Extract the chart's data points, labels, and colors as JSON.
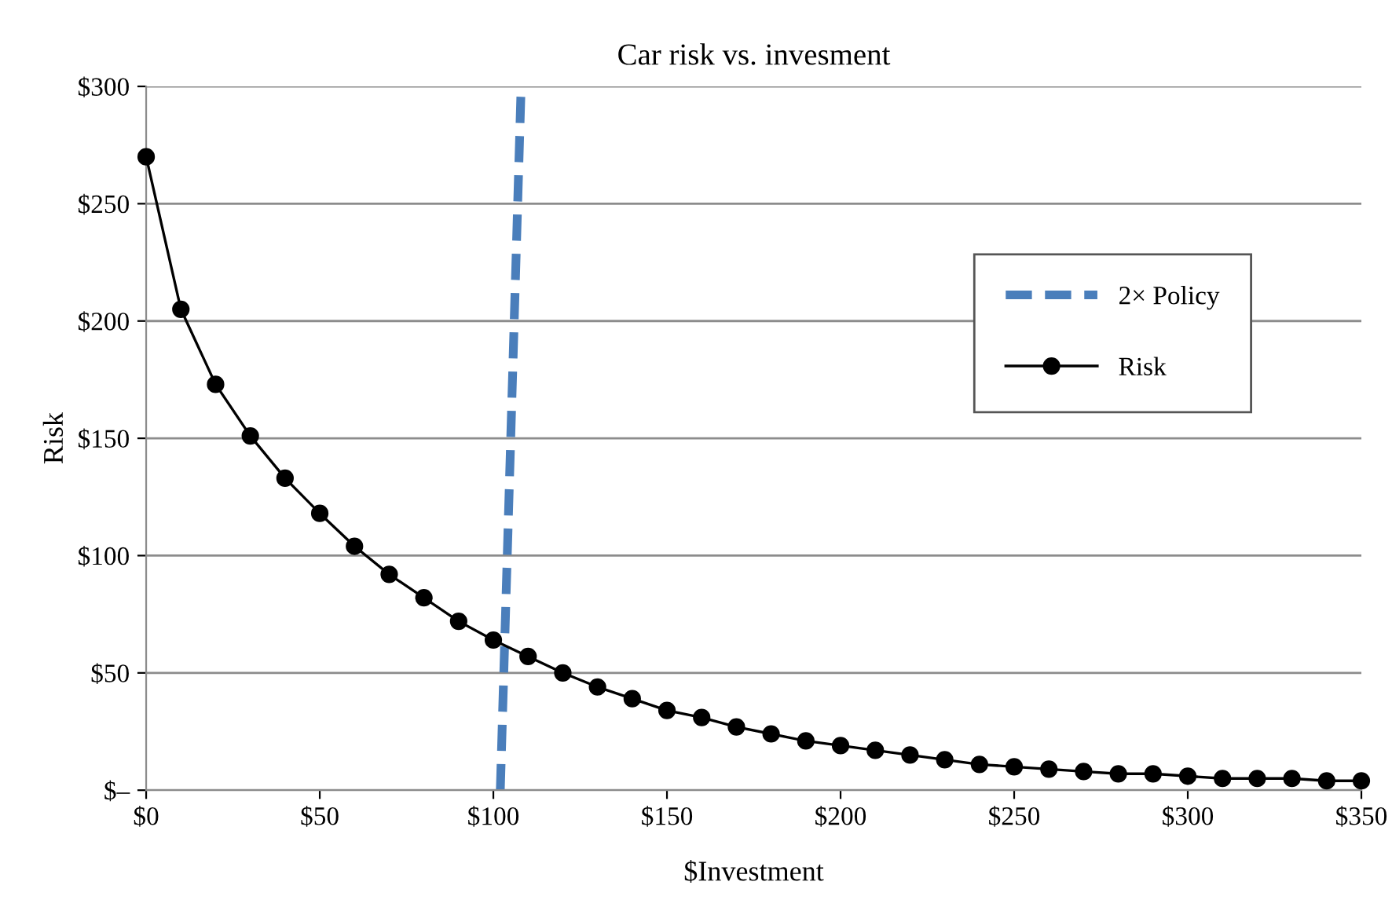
{
  "chart_data": {
    "type": "line",
    "title": "Car risk vs. invesment",
    "xlabel": "$Investment",
    "ylabel": "Risk",
    "series": [
      {
        "name": "2× Policy",
        "color": "#4a7ebb",
        "line_style": "dashed",
        "marker": "none",
        "x": [
          102,
          108
        ],
        "values": [
          0,
          300
        ]
      },
      {
        "name": "Risk",
        "color": "#000000",
        "line_style": "solid",
        "marker": "circle",
        "x": [
          0,
          10,
          20,
          30,
          40,
          50,
          60,
          70,
          80,
          90,
          100,
          110,
          120,
          130,
          140,
          150,
          160,
          170,
          180,
          190,
          200,
          210,
          220,
          230,
          240,
          250,
          260,
          270,
          280,
          290,
          300,
          310,
          320,
          330,
          340,
          350
        ],
        "values": [
          270,
          205,
          173,
          151,
          133,
          118,
          104,
          92,
          82,
          72,
          64,
          57,
          50,
          44,
          39,
          34,
          31,
          27,
          24,
          21,
          19,
          17,
          15,
          13,
          11,
          10,
          9,
          8,
          7,
          7,
          6,
          5,
          5,
          5,
          4,
          4
        ]
      }
    ],
    "xlim": [
      0,
      350
    ],
    "xticks": [
      {
        "value": 0,
        "label": "$0"
      },
      {
        "value": 50,
        "label": "$50"
      },
      {
        "value": 100,
        "label": "$100"
      },
      {
        "value": 150,
        "label": "$150"
      },
      {
        "value": 200,
        "label": "$200"
      },
      {
        "value": 250,
        "label": "$250"
      },
      {
        "value": 300,
        "label": "$300"
      },
      {
        "value": 350,
        "label": "$350"
      }
    ],
    "ylim": [
      0,
      300
    ],
    "yticks": [
      {
        "value": 0,
        "label": "$–"
      },
      {
        "value": 50,
        "label": "$50"
      },
      {
        "value": 100,
        "label": "$100"
      },
      {
        "value": 150,
        "label": "$150"
      },
      {
        "value": 200,
        "label": "$200"
      },
      {
        "value": 250,
        "label": "$250"
      },
      {
        "value": 300,
        "label": "$300"
      }
    ],
    "grid": "y",
    "legend": "upper right"
  }
}
